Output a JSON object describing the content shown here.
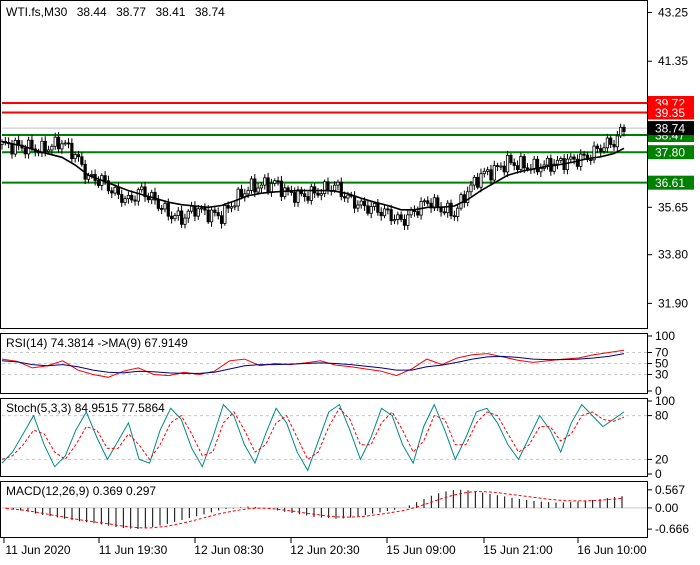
{
  "chart_data": {
    "type": "candlestick",
    "header": {
      "symbol": "WTI.fs,M30",
      "open": "38.44",
      "high": "38.77",
      "low": "38.41",
      "close": "38.74"
    },
    "price_axis": {
      "ylim": [
        30.9,
        43.7
      ],
      "ticks": [
        "43.25",
        "41.35",
        "35.65",
        "33.80",
        "31.90"
      ],
      "current_price": "38.74"
    },
    "levels": [
      {
        "label": "39.72",
        "value": 39.72,
        "color": "#ff0000"
      },
      {
        "label": "39.35",
        "value": 39.35,
        "color": "#ff0000"
      },
      {
        "label": "38.47",
        "value": 38.47,
        "color": "#008000"
      },
      {
        "label": "37.80",
        "value": 37.8,
        "color": "#008000"
      },
      {
        "label": "36.61",
        "value": 36.61,
        "color": "#008000"
      }
    ],
    "x_labels": [
      "11 Jun 2020",
      "11 Jun 19:30",
      "12 Jun 08:30",
      "12 Jun 20:30",
      "15 Jun 09:00",
      "15 Jun 21:00",
      "16 Jun 10:00"
    ],
    "price_path": [
      [
        0,
        38.1
      ],
      [
        6,
        38.0
      ],
      [
        12,
        37.9
      ],
      [
        18,
        38.2
      ],
      [
        22,
        37.7
      ],
      [
        26,
        36.8
      ],
      [
        30,
        36.7
      ],
      [
        34,
        36.2
      ],
      [
        38,
        35.9
      ],
      [
        42,
        36.3
      ],
      [
        46,
        35.9
      ],
      [
        50,
        35.4
      ],
      [
        54,
        35.2
      ],
      [
        58,
        35.6
      ],
      [
        62,
        35.4
      ],
      [
        66,
        35.3
      ],
      [
        70,
        35.9
      ],
      [
        74,
        36.4
      ],
      [
        78,
        36.5
      ],
      [
        82,
        36.6
      ],
      [
        86,
        36.2
      ],
      [
        90,
        36.1
      ],
      [
        94,
        36.2
      ],
      [
        98,
        36.4
      ],
      [
        100,
        36.5
      ],
      [
        104,
        36.0
      ],
      [
        108,
        35.7
      ],
      [
        112,
        35.6
      ],
      [
        116,
        35.4
      ],
      [
        120,
        35.1
      ],
      [
        124,
        35.5
      ],
      [
        128,
        35.9
      ],
      [
        132,
        35.6
      ],
      [
        136,
        35.4
      ],
      [
        140,
        36.3
      ],
      [
        144,
        36.9
      ],
      [
        148,
        37.1
      ],
      [
        152,
        37.4
      ],
      [
        156,
        37.3
      ],
      [
        160,
        37.2
      ],
      [
        164,
        37.3
      ],
      [
        168,
        37.4
      ],
      [
        172,
        37.5
      ],
      [
        176,
        37.6
      ],
      [
        180,
        38.0
      ],
      [
        184,
        38.2
      ],
      [
        187,
        38.74
      ]
    ],
    "ma_path": [
      [
        0,
        38.2
      ],
      [
        6,
        38.05
      ],
      [
        12,
        37.8
      ],
      [
        18,
        37.6
      ],
      [
        22,
        37.3
      ],
      [
        26,
        36.9
      ],
      [
        30,
        36.7
      ],
      [
        34,
        36.5
      ],
      [
        38,
        36.3
      ],
      [
        42,
        36.15
      ],
      [
        46,
        36.0
      ],
      [
        50,
        35.85
      ],
      [
        54,
        35.75
      ],
      [
        58,
        35.7
      ],
      [
        62,
        35.65
      ],
      [
        66,
        35.72
      ],
      [
        70,
        35.9
      ],
      [
        74,
        36.1
      ],
      [
        78,
        36.2
      ],
      [
        82,
        36.25
      ],
      [
        86,
        36.28
      ],
      [
        90,
        36.3
      ],
      [
        94,
        36.3
      ],
      [
        98,
        36.3
      ],
      [
        100,
        36.28
      ],
      [
        104,
        36.18
      ],
      [
        108,
        36.0
      ],
      [
        112,
        35.85
      ],
      [
        116,
        35.72
      ],
      [
        120,
        35.55
      ],
      [
        124,
        35.55
      ],
      [
        128,
        35.65
      ],
      [
        132,
        35.65
      ],
      [
        136,
        35.7
      ],
      [
        140,
        35.95
      ],
      [
        144,
        36.3
      ],
      [
        148,
        36.6
      ],
      [
        152,
        36.9
      ],
      [
        156,
        37.05
      ],
      [
        160,
        37.15
      ],
      [
        164,
        37.25
      ],
      [
        168,
        37.32
      ],
      [
        172,
        37.42
      ],
      [
        176,
        37.55
      ],
      [
        180,
        37.62
      ],
      [
        184,
        37.75
      ],
      [
        187,
        37.95
      ]
    ],
    "panels": [
      {
        "id": "rsi",
        "title": "RSI(14) 74.3814  ->MA(9) 67.9149",
        "ylim": [
          0,
          100
        ],
        "ticks": [
          {
            "label": "100",
            "value": 100
          },
          {
            "label": "70",
            "value": 70
          },
          {
            "label": "50",
            "value": 50
          },
          {
            "label": "30",
            "value": 30
          },
          {
            "label": "0",
            "value": 0
          }
        ],
        "grid": [
          70,
          50,
          30
        ],
        "series": [
          {
            "values": [
              58,
              54,
              42,
              46,
              55,
              38,
              30,
              25,
              36,
              42,
              30,
              28,
              34,
              30,
              36,
              55,
              58,
              46,
              50,
              48,
              51,
              55,
              47,
              44,
              40,
              36,
              28,
              40,
              58,
              48,
              60,
              66,
              68,
              62,
              56,
              52,
              55,
              58,
              60,
              66,
              70,
              74
            ],
            "color": "#ff0000"
          },
          {
            "values": [
              55,
              53,
              48,
              46,
              48,
              44,
              38,
              34,
              33,
              36,
              35,
              33,
              32,
              32,
              34,
              40,
              46,
              48,
              48,
              49,
              50,
              51,
              50,
              48,
              45,
              42,
              38,
              38,
              44,
              47,
              52,
              58,
              62,
              63,
              61,
              58,
              57,
              57,
              58,
              60,
              63,
              68
            ],
            "color": "#000080"
          }
        ]
      },
      {
        "id": "stoch",
        "title": "Stoch(5,3,3) 84.9515 77.5864",
        "ylim": [
          0,
          100
        ],
        "ticks": [
          {
            "label": "100",
            "value": 100
          },
          {
            "label": "80",
            "value": 80
          },
          {
            "label": "20",
            "value": 20
          },
          {
            "label": "0",
            "value": 0
          }
        ],
        "grid": [
          80,
          20
        ],
        "series": [
          {
            "values": [
              15,
              30,
              55,
              80,
              40,
              10,
              25,
              60,
              85,
              50,
              20,
              45,
              70,
              20,
              15,
              60,
              90,
              75,
              35,
              10,
              50,
              95,
              80,
              40,
              15,
              55,
              90,
              70,
              30,
              5,
              45,
              85,
              95,
              60,
              20,
              50,
              90,
              80,
              40,
              15,
              65,
              95,
              60,
              20,
              50,
              85,
              90,
              70,
              40,
              20,
              50,
              80,
              60,
              30,
              70,
              95,
              80,
              65,
              75,
              85
            ],
            "color": "#008b8b"
          },
          {
            "values": [
              20,
              25,
              40,
              60,
              55,
              30,
              20,
              40,
              65,
              60,
              35,
              35,
              55,
              40,
              20,
              40,
              70,
              80,
              55,
              25,
              30,
              70,
              85,
              60,
              30,
              40,
              70,
              80,
              50,
              20,
              30,
              65,
              90,
              75,
              40,
              40,
              70,
              85,
              60,
              30,
              45,
              80,
              75,
              40,
              40,
              70,
              85,
              80,
              55,
              30,
              40,
              65,
              65,
              45,
              55,
              80,
              85,
              75,
              72,
              78
            ],
            "color": "#ff0000"
          }
        ]
      },
      {
        "id": "macd",
        "title": "MACD(12,26,9) 0.369 0.297",
        "ylim": [
          -0.85,
          0.75
        ],
        "ticks": [
          {
            "label": "0.567",
            "value": 0.567
          },
          {
            "label": "0.00",
            "value": 0.0
          },
          {
            "label": "-0.666",
            "value": -0.666
          }
        ],
        "grid": [],
        "histogram": [
          -0.02,
          -0.05,
          -0.08,
          -0.12,
          -0.18,
          -0.22,
          -0.26,
          -0.3,
          -0.34,
          -0.38,
          -0.42,
          -0.45,
          -0.48,
          -0.52,
          -0.56,
          -0.6,
          -0.63,
          -0.65,
          -0.66,
          -0.64,
          -0.6,
          -0.55,
          -0.5,
          -0.44,
          -0.38,
          -0.32,
          -0.26,
          -0.2,
          -0.14,
          -0.08,
          -0.04,
          -0.02,
          0.02,
          0.04,
          0.03,
          0.0,
          -0.04,
          -0.08,
          -0.12,
          -0.16,
          -0.2,
          -0.24,
          -0.28,
          -0.3,
          -0.32,
          -0.34,
          -0.33,
          -0.3,
          -0.26,
          -0.22,
          -0.18,
          -0.14,
          -0.1,
          -0.06,
          0.0,
          0.08,
          0.18,
          0.28,
          0.38,
          0.46,
          0.52,
          0.56,
          0.57,
          0.55,
          0.52,
          0.48,
          0.44,
          0.4,
          0.36,
          0.32,
          0.28,
          0.25,
          0.22,
          0.2,
          0.18,
          0.17,
          0.17,
          0.18,
          0.2,
          0.22,
          0.25,
          0.28,
          0.31,
          0.34,
          0.37
        ],
        "signal": [
          -0.02,
          -0.04,
          -0.06,
          -0.09,
          -0.13,
          -0.17,
          -0.21,
          -0.25,
          -0.29,
          -0.33,
          -0.37,
          -0.4,
          -0.44,
          -0.47,
          -0.5,
          -0.54,
          -0.57,
          -0.6,
          -0.62,
          -0.63,
          -0.62,
          -0.6,
          -0.57,
          -0.53,
          -0.48,
          -0.43,
          -0.37,
          -0.31,
          -0.25,
          -0.19,
          -0.14,
          -0.1,
          -0.06,
          -0.03,
          -0.01,
          -0.01,
          -0.02,
          -0.04,
          -0.07,
          -0.1,
          -0.13,
          -0.17,
          -0.2,
          -0.23,
          -0.26,
          -0.28,
          -0.29,
          -0.29,
          -0.28,
          -0.26,
          -0.23,
          -0.2,
          -0.17,
          -0.13,
          -0.09,
          -0.04,
          0.03,
          0.1,
          0.18,
          0.26,
          0.33,
          0.4,
          0.45,
          0.49,
          0.51,
          0.51,
          0.5,
          0.48,
          0.45,
          0.42,
          0.39,
          0.36,
          0.33,
          0.3,
          0.27,
          0.25,
          0.23,
          0.22,
          0.22,
          0.22,
          0.23,
          0.24,
          0.26,
          0.28,
          0.3
        ],
        "series": []
      }
    ]
  }
}
